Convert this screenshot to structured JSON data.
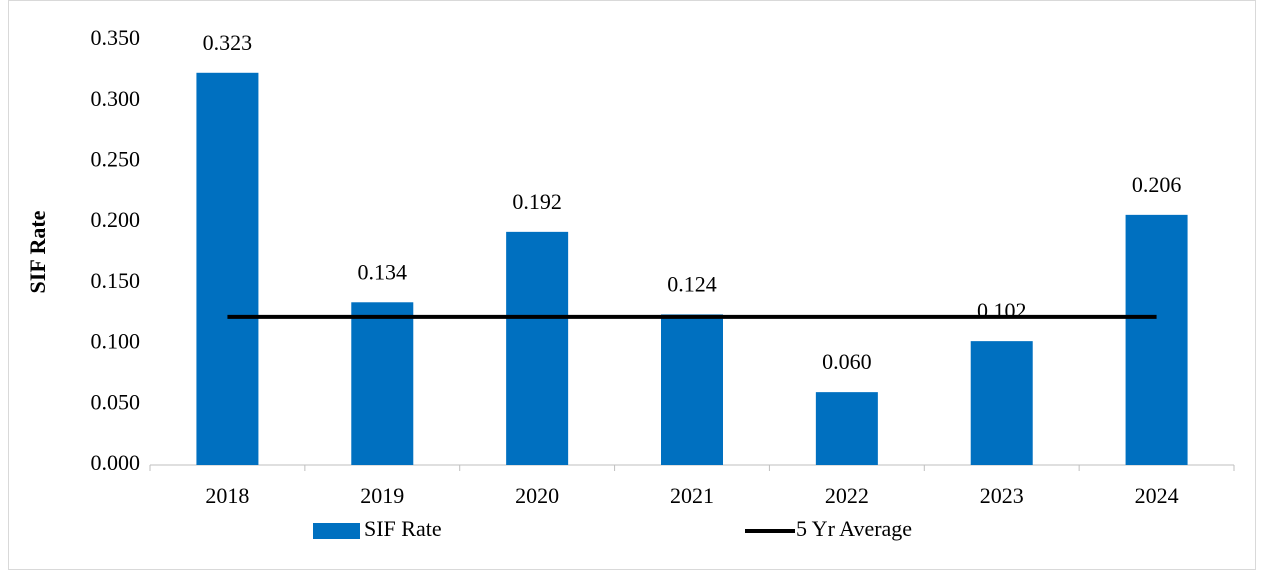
{
  "chart_data": {
    "type": "bar",
    "y_label": "SIF Rate",
    "categories": [
      "2018",
      "2019",
      "2020",
      "2021",
      "2022",
      "2023",
      "2024"
    ],
    "series": [
      {
        "name": "SIF Rate",
        "type": "bar",
        "color": "#0070c0",
        "values": [
          0.323,
          0.134,
          0.192,
          0.124,
          0.06,
          0.102,
          0.206
        ],
        "value_labels": [
          "0.323",
          "0.134",
          "0.192",
          "0.124",
          "0.060",
          "0.102",
          "0.206"
        ]
      },
      {
        "name": "5 Yr Average",
        "type": "line",
        "color": "#000000",
        "values": [
          0.122,
          0.122,
          0.122,
          0.122,
          0.122,
          0.122,
          0.122
        ]
      }
    ],
    "ylim": [
      0,
      0.35
    ],
    "yticks": [
      {
        "value": 0,
        "label": "0.000"
      },
      {
        "value": 0.05,
        "label": "0.050"
      },
      {
        "value": 0.1,
        "label": "0.100"
      },
      {
        "value": 0.15,
        "label": "0.150"
      },
      {
        "value": 0.2,
        "label": "0.200"
      },
      {
        "value": 0.25,
        "label": "0.250"
      },
      {
        "value": 0.3,
        "label": "0.300"
      },
      {
        "value": 0.35,
        "label": "0.350"
      }
    ],
    "grid": false,
    "legend": "bottom"
  }
}
